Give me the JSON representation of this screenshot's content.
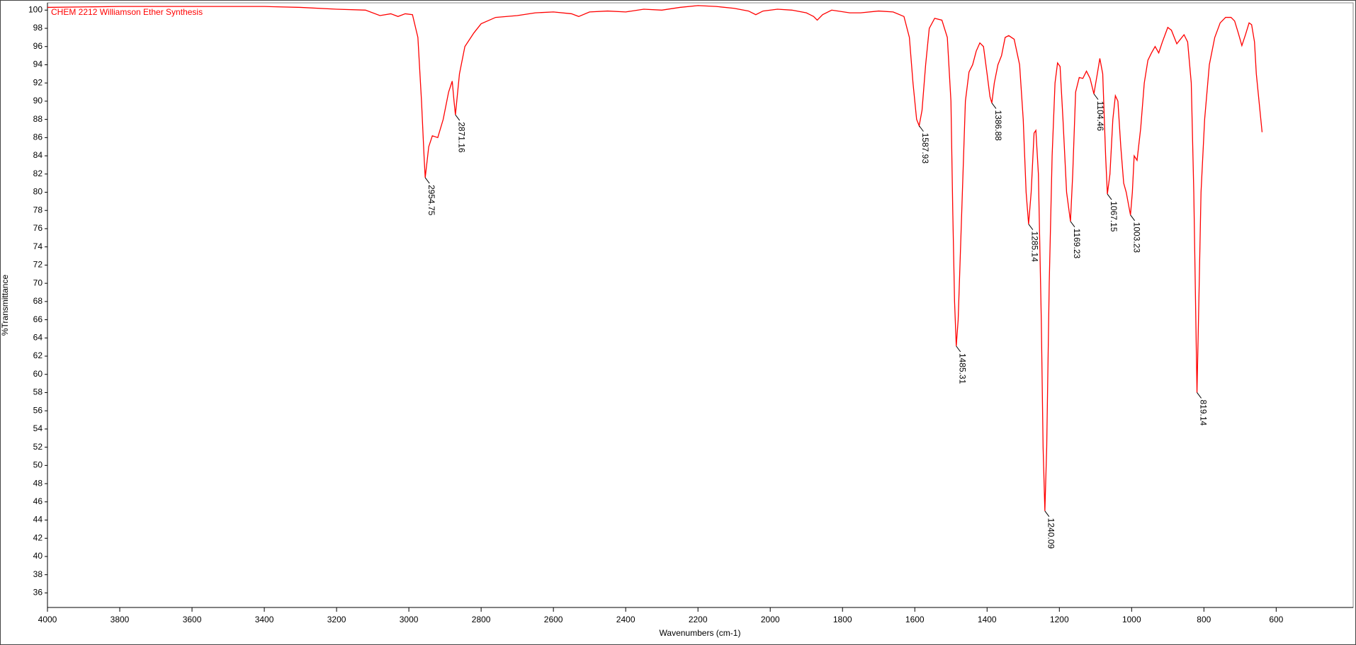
{
  "chart_data": {
    "type": "line",
    "title": "CHEM 2212 Williamson Ether Synthesis",
    "x_label": "Wavenumbers (cm-1)",
    "y_label": "%Transmittance",
    "color": "#ff0000",
    "xlim": [
      4000,
      387
    ],
    "ylim": [
      34.4,
      100.8
    ],
    "xticks": [
      4000,
      3800,
      3600,
      3400,
      3200,
      3000,
      2800,
      2600,
      2400,
      2200,
      2000,
      1800,
      1600,
      1400,
      1200,
      1000,
      800,
      600
    ],
    "yticks": [
      36,
      38,
      40,
      42,
      44,
      46,
      48,
      50,
      52,
      54,
      56,
      58,
      60,
      62,
      64,
      66,
      68,
      70,
      72,
      74,
      76,
      78,
      80,
      82,
      84,
      86,
      88,
      90,
      92,
      94,
      96,
      98,
      100
    ],
    "x": [
      4000,
      3800,
      3600,
      3400,
      3300,
      3200,
      3120,
      3080,
      3050,
      3030,
      3010,
      2990,
      2975,
      2965,
      2958,
      2954.75,
      2945,
      2935,
      2920,
      2905,
      2890,
      2880,
      2875,
      2871.16,
      2860,
      2845,
      2820,
      2800,
      2760,
      2700,
      2650,
      2600,
      2550,
      2530,
      2500,
      2450,
      2400,
      2350,
      2300,
      2250,
      2200,
      2150,
      2100,
      2060,
      2040,
      2020,
      1980,
      1940,
      1900,
      1880,
      1870,
      1855,
      1830,
      1780,
      1750,
      1700,
      1660,
      1630,
      1615,
      1605,
      1595,
      1587.93,
      1580,
      1570,
      1560,
      1545,
      1525,
      1510,
      1500,
      1495,
      1490,
      1485.31,
      1480,
      1470,
      1460,
      1450,
      1440,
      1430,
      1420,
      1410,
      1400,
      1392,
      1386.88,
      1380,
      1370,
      1360,
      1350,
      1340,
      1325,
      1310,
      1300,
      1292,
      1285.14,
      1278,
      1270,
      1265,
      1258,
      1250,
      1245,
      1240.09,
      1235,
      1228,
      1220,
      1212,
      1205,
      1198,
      1190,
      1180,
      1169.23,
      1163,
      1155,
      1145,
      1135,
      1125,
      1115,
      1104.46,
      1095,
      1088,
      1080,
      1072,
      1067.15,
      1060,
      1052,
      1045,
      1038,
      1030,
      1022,
      1015,
      1008,
      1003.23,
      998,
      993,
      985,
      975,
      965,
      955,
      945,
      935,
      925,
      915,
      900,
      890,
      875,
      865,
      855,
      845,
      835,
      828,
      822,
      819.14,
      815,
      808,
      798,
      785,
      770,
      755,
      740,
      725,
      715,
      705,
      695,
      685,
      675,
      668,
      660,
      655,
      645,
      639
    ],
    "y": [
      100.3,
      100.4,
      100.4,
      100.4,
      100.3,
      100.1,
      100.0,
      99.4,
      99.6,
      99.3,
      99.6,
      99.5,
      97,
      90,
      84,
      81.6,
      85,
      86.2,
      86.0,
      88,
      91,
      92.2,
      90,
      88.5,
      93,
      96,
      97.5,
      98.5,
      99.2,
      99.4,
      99.7,
      99.8,
      99.6,
      99.3,
      99.8,
      99.9,
      99.8,
      100.1,
      100.0,
      100.3,
      100.5,
      100.4,
      100.2,
      99.9,
      99.5,
      99.9,
      100.1,
      100.0,
      99.7,
      99.3,
      98.9,
      99.5,
      100.0,
      99.7,
      99.7,
      99.9,
      99.8,
      99.3,
      97,
      92,
      88,
      87.3,
      89,
      94,
      98,
      99.1,
      98.9,
      97,
      90,
      78,
      68,
      63.1,
      66,
      78,
      90,
      93.2,
      94,
      95.5,
      96.4,
      96,
      93,
      90.5,
      89.8,
      92,
      94,
      95,
      97,
      97.2,
      96.8,
      94,
      88,
      80,
      76.5,
      80,
      86.5,
      86.8,
      82,
      66,
      52,
      45.0,
      52,
      70,
      84,
      92,
      94.2,
      93.8,
      88,
      80,
      76.8,
      82,
      91,
      92.6,
      92.5,
      93.3,
      92.5,
      90.8,
      93,
      94.7,
      93,
      84,
      79.8,
      82,
      88,
      90.6,
      90,
      85,
      81,
      80,
      78.5,
      77.5,
      80,
      84,
      83.5,
      87,
      92,
      94.5,
      95.3,
      96,
      95.3,
      96.5,
      98.1,
      97.8,
      96.3,
      96.8,
      97.3,
      96.5,
      92,
      80,
      65,
      58.0,
      66,
      80,
      88,
      94,
      97,
      98.6,
      99.2,
      99.2,
      98.8,
      97.5,
      96.1,
      97.3,
      98.6,
      98.4,
      96.5,
      93,
      89,
      86.6
    ],
    "peaks": [
      {
        "x": 2954.75,
        "y": 81.6
      },
      {
        "x": 2871.16,
        "y": 88.5
      },
      {
        "x": 1587.93,
        "y": 87.3
      },
      {
        "x": 1485.31,
        "y": 63.1
      },
      {
        "x": 1386.88,
        "y": 89.8
      },
      {
        "x": 1285.14,
        "y": 76.5
      },
      {
        "x": 1240.09,
        "y": 45.0
      },
      {
        "x": 1169.23,
        "y": 76.8
      },
      {
        "x": 1104.46,
        "y": 90.8
      },
      {
        "x": 1067.15,
        "y": 79.8
      },
      {
        "x": 1003.23,
        "y": 77.5
      },
      {
        "x": 819.14,
        "y": 58.0
      }
    ]
  }
}
